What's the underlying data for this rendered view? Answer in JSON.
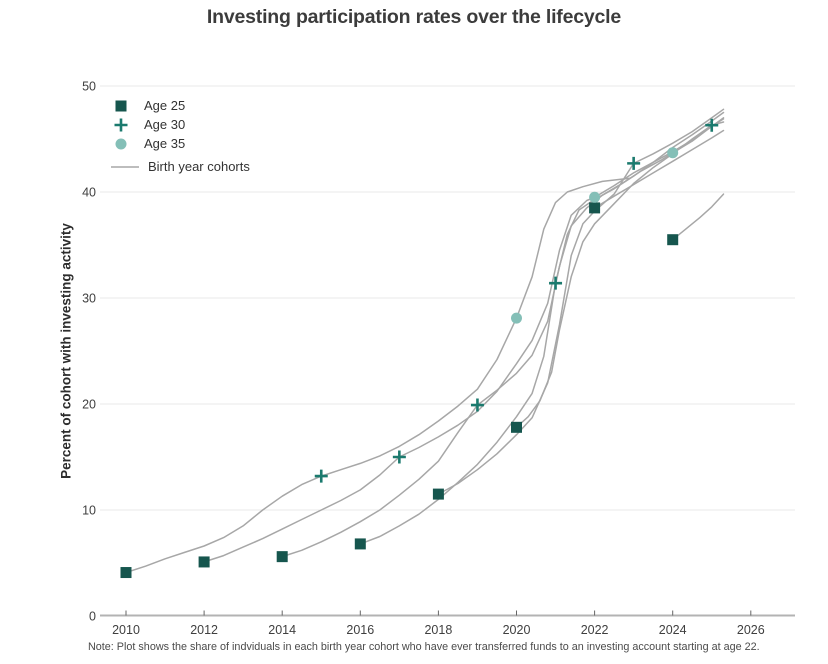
{
  "title": "Investing participation rates over the lifecycle",
  "note": "Note: Plot shows the share of indviduals in each birth year cohort who have ever transferred funds to an investing account starting at age 22.",
  "legend": {
    "age25": "Age 25",
    "age30": "Age 30",
    "age35": "Age 35",
    "cohorts": "Birth year cohorts"
  },
  "colors": {
    "age25_square": "#16564e",
    "age30_plus": "#1b7a6e",
    "age35_circle": "#84bfb7",
    "cohort_line": "#a7a7a7",
    "gridline": "#e9e9e9",
    "axis_line": "#b3b3b3",
    "tick_mark": "#666666",
    "tick_label": "#3f3f3f"
  },
  "chart_data": {
    "type": "line",
    "title": "Investing participation rates over the lifecycle",
    "xlabel": "",
    "ylabel": "Percent of cohort with investing activity",
    "xlim": [
      2009.3,
      2027.1
    ],
    "ylim": [
      0,
      50
    ],
    "xticks": [
      2010,
      2012,
      2014,
      2016,
      2018,
      2020,
      2022,
      2024,
      2026
    ],
    "yticks": [
      0,
      10,
      20,
      30,
      40,
      50
    ],
    "grid": "horizontal",
    "legend_position": "top-left-inside",
    "series": [
      {
        "name": "Cohort age 25 in 2010",
        "x": [
          2010,
          2010.5,
          2011,
          2011.5,
          2012,
          2012.5,
          2013,
          2013.5,
          2014,
          2014.5,
          2015,
          2015.5,
          2016,
          2016.5,
          2017,
          2017.5,
          2018,
          2018.5,
          2019,
          2019.5,
          2020,
          2020.4,
          2020.7,
          2021,
          2021.3,
          2021.7,
          2022.2,
          2022.9
        ],
        "y": [
          4.1,
          4.7,
          5.4,
          6.0,
          6.6,
          7.4,
          8.5,
          10.0,
          11.3,
          12.4,
          13.2,
          13.8,
          14.4,
          15.1,
          16.0,
          17.1,
          18.4,
          19.8,
          21.4,
          24.2,
          28.1,
          32.0,
          36.5,
          39.0,
          40.0,
          40.5,
          41.0,
          41.3
        ]
      },
      {
        "name": "Cohort age 25 in 2012",
        "x": [
          2012,
          2012.5,
          2013,
          2013.5,
          2014,
          2014.5,
          2015,
          2015.5,
          2016,
          2016.5,
          2017,
          2017.5,
          2018,
          2018.5,
          2019,
          2019.5,
          2020,
          2020.4,
          2020.8,
          2021.1,
          2021.4,
          2021.8,
          2022,
          2022.5,
          2023,
          2023.5,
          2024,
          2024.5,
          2025,
          2025.3
        ],
        "y": [
          5.1,
          5.7,
          6.5,
          7.3,
          8.2,
          9.1,
          10.0,
          10.9,
          11.9,
          13.3,
          15.0,
          15.9,
          16.9,
          18.0,
          19.3,
          21.2,
          23.8,
          26.0,
          29.5,
          34.5,
          37.8,
          39.2,
          39.5,
          40.6,
          41.8,
          42.8,
          43.8,
          44.9,
          46.2,
          46.9
        ]
      },
      {
        "name": "Cohort age 25 in 2014",
        "x": [
          2014,
          2014.5,
          2015,
          2015.5,
          2016,
          2016.5,
          2017,
          2017.5,
          2018,
          2018.5,
          2019,
          2019.5,
          2020,
          2020.4,
          2020.8,
          2021.1,
          2021.4,
          2021.8,
          2022.2,
          2022.7,
          2023.2,
          2023.7,
          2024,
          2024.5,
          2025,
          2025.3
        ],
        "y": [
          5.6,
          6.2,
          7.0,
          7.9,
          8.9,
          10.0,
          11.4,
          12.9,
          14.6,
          17.3,
          19.9,
          21.3,
          22.9,
          24.6,
          27.8,
          33.0,
          36.8,
          38.5,
          39.7,
          40.8,
          42.0,
          43.0,
          43.7,
          44.8,
          46.2,
          47.0
        ]
      },
      {
        "name": "Cohort age 25 in 2016",
        "x": [
          2016,
          2016.5,
          2017,
          2017.5,
          2018,
          2018.5,
          2019,
          2019.5,
          2020,
          2020.4,
          2020.7,
          2021,
          2021.3,
          2021.6,
          2022,
          2022.5,
          2023,
          2023.5,
          2024,
          2024.5,
          2025,
          2025.3
        ],
        "y": [
          6.8,
          7.5,
          8.5,
          9.6,
          11.0,
          12.6,
          14.3,
          16.4,
          18.8,
          21.0,
          24.5,
          31.4,
          36.0,
          38.3,
          39.3,
          40.3,
          41.5,
          42.8,
          44.2,
          45.4,
          46.7,
          47.5
        ]
      },
      {
        "name": "Cohort age 25 in 2018",
        "x": [
          2018,
          2018.5,
          2019,
          2019.5,
          2020,
          2020.4,
          2020.8,
          2021.1,
          2021.4,
          2021.7,
          2022,
          2022.5,
          2023,
          2023.5,
          2024,
          2024.5,
          2025,
          2025.3
        ],
        "y": [
          11.5,
          12.5,
          13.8,
          15.3,
          17.1,
          18.7,
          22.0,
          27.5,
          34.0,
          37.0,
          38.2,
          39.8,
          42.7,
          43.6,
          44.6,
          45.7,
          47.0,
          47.8
        ]
      },
      {
        "name": "Cohort age 25 in 2020",
        "x": [
          2020,
          2020.3,
          2020.6,
          2020.9,
          2021.1,
          2021.4,
          2021.7,
          2022,
          2022.5,
          2023,
          2023.5,
          2024,
          2024.5,
          2025,
          2025.3
        ],
        "y": [
          17.8,
          18.8,
          20.3,
          23.0,
          27.0,
          32.0,
          35.3,
          37.0,
          38.9,
          40.8,
          42.3,
          43.6,
          45.0,
          46.3,
          46.6
        ]
      },
      {
        "name": "Cohort age 25 in 2022",
        "x": [
          2022,
          2022.5,
          2023,
          2023.5,
          2024,
          2024.5,
          2025,
          2025.3
        ],
        "y": [
          38.5,
          39.6,
          40.7,
          41.8,
          42.9,
          44.0,
          45.1,
          45.8
        ]
      },
      {
        "name": "Cohort age 25 in 2024",
        "x": [
          2024,
          2024.3,
          2024.7,
          2025,
          2025.3
        ],
        "y": [
          35.5,
          36.4,
          37.6,
          38.6,
          39.8
        ]
      }
    ],
    "markers": {
      "age25": [
        [
          2010,
          4.1
        ],
        [
          2012,
          5.1
        ],
        [
          2014,
          5.6
        ],
        [
          2016,
          6.8
        ],
        [
          2018,
          11.5
        ],
        [
          2020,
          17.8
        ],
        [
          2022,
          38.5
        ],
        [
          2024,
          35.5
        ]
      ],
      "age30": [
        [
          2015,
          13.2
        ],
        [
          2017,
          15.0
        ],
        [
          2019,
          19.9
        ],
        [
          2021,
          31.4
        ],
        [
          2023,
          42.7
        ],
        [
          2025,
          46.3
        ]
      ],
      "age35": [
        [
          2020,
          28.1
        ],
        [
          2022,
          39.5
        ],
        [
          2024,
          43.7
        ]
      ]
    }
  }
}
